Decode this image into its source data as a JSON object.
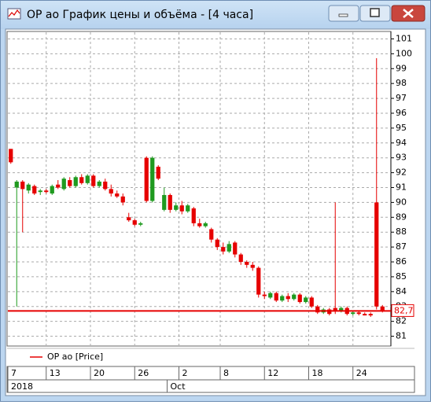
{
  "window": {
    "title": "ОР ао График цены и объёма - [4 часа]"
  },
  "chart_data": {
    "type": "candlestick",
    "legend": "ОР ао [Price]",
    "up_color": "#1f9a1f",
    "down_color": "#e60000",
    "open": [
      93.6,
      91.0,
      91.4,
      90.8,
      91.1,
      90.7,
      90.8,
      90.6,
      91.2,
      90.9,
      91.5,
      91.1,
      91.7,
      91.3,
      91.8,
      91.1,
      91.4,
      90.9,
      90.6,
      90.4,
      89.0,
      88.8,
      88.5,
      93.0,
      90.1,
      92.4,
      89.5,
      90.5,
      89.5,
      89.8,
      89.4,
      89.6,
      88.6,
      88.4,
      88.2,
      87.5,
      87.0,
      86.7,
      87.3,
      86.5,
      86.0,
      85.8,
      85.6,
      83.8,
      83.6,
      83.9,
      83.4,
      83.7,
      83.5,
      83.8,
      83.3,
      83.6,
      83.0,
      82.6,
      82.8,
      82.9,
      82.7,
      82.9,
      82.5,
      82.6,
      82.5,
      82.5,
      90.0,
      83.0
    ],
    "high": [
      93.6,
      91.5,
      91.5,
      91.3,
      91.2,
      90.9,
      90.9,
      91.2,
      91.5,
      91.7,
      91.7,
      91.8,
      91.9,
      91.9,
      91.9,
      91.5,
      91.6,
      91.2,
      90.8,
      90.6,
      89.3,
      88.9,
      88.7,
      93.1,
      93.1,
      92.5,
      91.0,
      90.6,
      90.0,
      90.1,
      89.9,
      89.7,
      88.9,
      88.7,
      88.3,
      87.6,
      87.3,
      87.4,
      87.4,
      86.6,
      86.1,
      86.0,
      85.7,
      84.0,
      84.0,
      84.0,
      83.8,
      83.9,
      83.9,
      83.9,
      83.7,
      83.7,
      83.1,
      82.9,
      82.9,
      90.0,
      83.0,
      83.0,
      82.7,
      82.7,
      82.6,
      82.6,
      99.7,
      83.1
    ],
    "low": [
      92.6,
      83.0,
      88.0,
      90.6,
      90.5,
      90.5,
      90.6,
      90.5,
      90.9,
      90.8,
      91.0,
      91.0,
      91.2,
      91.2,
      91.0,
      91.0,
      90.8,
      90.4,
      90.3,
      89.8,
      88.7,
      88.4,
      88.4,
      90.0,
      90.0,
      91.5,
      89.4,
      89.3,
      89.4,
      89.2,
      89.3,
      88.4,
      88.3,
      88.3,
      87.3,
      86.8,
      86.5,
      86.6,
      86.3,
      85.8,
      85.6,
      85.4,
      83.6,
      83.5,
      83.5,
      83.3,
      83.3,
      83.3,
      83.4,
      83.2,
      83.2,
      82.9,
      82.5,
      82.5,
      82.4,
      82.5,
      82.6,
      82.4,
      82.4,
      82.4,
      82.4,
      82.3,
      82.8,
      82.6
    ],
    "close": [
      92.7,
      91.4,
      90.9,
      91.2,
      90.6,
      90.8,
      90.7,
      91.1,
      91.0,
      91.6,
      91.1,
      91.7,
      91.3,
      91.8,
      91.1,
      91.4,
      90.9,
      90.6,
      90.4,
      90.0,
      88.8,
      88.5,
      88.6,
      90.1,
      93.0,
      91.6,
      90.5,
      89.5,
      89.8,
      89.4,
      89.8,
      88.6,
      88.4,
      88.6,
      87.5,
      87.0,
      86.7,
      87.2,
      86.5,
      86.0,
      85.8,
      85.6,
      83.8,
      83.7,
      83.9,
      83.4,
      83.7,
      83.5,
      83.8,
      83.3,
      83.6,
      83.0,
      82.6,
      82.8,
      82.5,
      82.7,
      82.9,
      82.5,
      82.6,
      82.5,
      82.4,
      82.4,
      83.0,
      82.7
    ],
    "ylim": [
      80.5,
      101.5
    ],
    "yticks": [
      81,
      82,
      83,
      84,
      85,
      86,
      87,
      88,
      89,
      90,
      91,
      92,
      93,
      94,
      95,
      96,
      97,
      98,
      99,
      100,
      101
    ],
    "xlim": [
      0,
      64
    ],
    "xticks": [
      {
        "value": 0,
        "label": "7"
      },
      {
        "value": 6.5,
        "label": "13"
      },
      {
        "value": 14,
        "label": "20"
      },
      {
        "value": 21.5,
        "label": "26"
      },
      {
        "value": 29,
        "label": "2"
      },
      {
        "value": 36,
        "label": "8"
      },
      {
        "value": 43.5,
        "label": "12"
      },
      {
        "value": 51,
        "label": "18"
      },
      {
        "value": 58.5,
        "label": "24"
      }
    ],
    "xticks_secondary": [
      {
        "value": 0,
        "label": "2018"
      },
      {
        "value": 27,
        "label": "Oct"
      }
    ],
    "last_price": 82.7,
    "last_price_label": "82,7",
    "grid": true
  }
}
